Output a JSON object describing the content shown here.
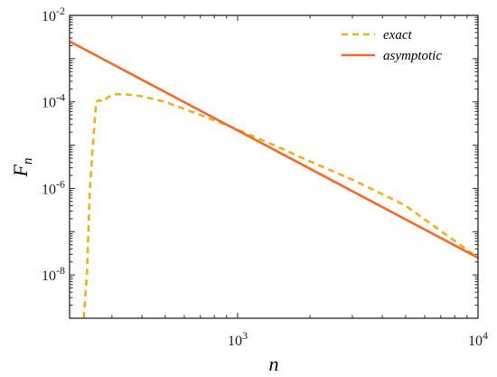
{
  "chart_data": {
    "type": "line",
    "title": "",
    "xlabel": "n",
    "ylabel": "F",
    "ylabel_subscript": "n",
    "xscale": "log",
    "yscale": "log",
    "xlim": [
      200,
      10000
    ],
    "ylim": [
      1e-09,
      0.01
    ],
    "x_ticks": [
      {
        "value": 1000,
        "base": "10",
        "exp": "3"
      },
      {
        "value": 10000,
        "base": "10",
        "exp": "4"
      }
    ],
    "y_ticks": [
      {
        "value": 0.01,
        "base": "10",
        "exp": "-2"
      },
      {
        "value": 0.0001,
        "base": "10",
        "exp": "-4"
      },
      {
        "value": 1e-06,
        "base": "10",
        "exp": "-6"
      },
      {
        "value": 1e-08,
        "base": "10",
        "exp": "-8"
      }
    ],
    "grid": false,
    "legend_position": "top-right",
    "series": [
      {
        "name": "exact",
        "style": "dashed",
        "color": "#EDB120",
        "x": [
          229,
          236,
          243,
          250,
          258,
          265,
          275,
          290,
          310,
          340,
          400,
          500,
          700,
          1000,
          1500,
          2000,
          3000,
          5000,
          10000
        ],
        "y": [
          1e-09,
          1e-08,
          1e-06,
          1e-05,
          0.0001,
          0.00011,
          0.0001,
          0.00013,
          0.00015,
          0.00015,
          0.000135,
          0.0001,
          5e-05,
          2.3e-05,
          8.7e-06,
          4.2e-06,
          1.6e-06,
          4e-07,
          2.5e-08
        ]
      },
      {
        "name": "asymptotic",
        "style": "solid",
        "color": "#F26B2A",
        "x": [
          200,
          10000
        ],
        "y": [
          0.0025,
          2.5e-08
        ]
      }
    ]
  }
}
